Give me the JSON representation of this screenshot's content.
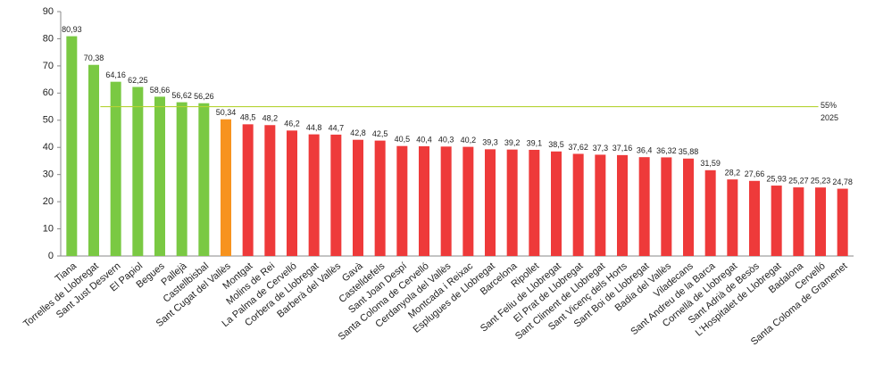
{
  "chart_data": {
    "type": "bar",
    "categories": [
      "Tiana",
      "Torrelles de Llobregat",
      "Sant Just Desvern",
      "El Papiol",
      "Begues",
      "Pallejà",
      "Castellbisbal",
      "Sant Cugat del Vallès",
      "Montgat",
      "Molins de Rei",
      "La Palma de Cervelló",
      "Corbera de Llobregat",
      "Barberà del Vallès",
      "Gavà",
      "Castelldefels",
      "Sant Joan Despí",
      "Santa Coloma de Cervelló",
      "Cerdanyola del Vallès",
      "Montcada i Reixac",
      "Esplugues de Llobregat",
      "Barcelona",
      "Ripollet",
      "Sant Feliu de Llobregat",
      "El Prat de Llobregat",
      "Sant Climent de Llobregat",
      "Sant Vicenç dels Horts",
      "Sant Boi de Llobregat",
      "Badia del Vallès",
      "Viladecans",
      "Sant Andreu de la Barca",
      "Cornellà de Llobregat",
      "Sant Adrià de Besòs",
      "L'Hospitalet de Llobregat",
      "Badalona",
      "Cervelló",
      "Santa Coloma de Gramenet"
    ],
    "values": [
      80.93,
      70.38,
      64.16,
      62.25,
      58.66,
      56.62,
      56.26,
      50.34,
      48.5,
      48.2,
      46.2,
      44.8,
      44.7,
      42.8,
      42.5,
      40.5,
      40.4,
      40.3,
      40.2,
      39.3,
      39.2,
      39.1,
      38.5,
      37.62,
      37.3,
      37.16,
      36.4,
      36.32,
      35.88,
      31.59,
      28.2,
      27.66,
      25.93,
      25.27,
      25.23,
      24.78
    ],
    "value_labels": [
      "80,93",
      "70,38",
      "64,16",
      "62,25",
      "58,66",
      "56,62",
      "56,26",
      "50,34",
      "48,5",
      "48,2",
      "46,2",
      "44,8",
      "44,7",
      "42,8",
      "42,5",
      "40,5",
      "40,4",
      "40,3",
      "40,2",
      "39,3",
      "39,2",
      "39,1",
      "38,5",
      "37,62",
      "37,3",
      "37,16",
      "36,4",
      "36,32",
      "35,88",
      "31,59",
      "28,2",
      "27,66",
      "25,93",
      "25,27",
      "25,23",
      "24,78"
    ],
    "colors": [
      "#7ac943",
      "#7ac943",
      "#7ac943",
      "#7ac943",
      "#7ac943",
      "#7ac943",
      "#7ac943",
      "#f7931e",
      "#ee3a3a",
      "#ee3a3a",
      "#ee3a3a",
      "#ee3a3a",
      "#ee3a3a",
      "#ee3a3a",
      "#ee3a3a",
      "#ee3a3a",
      "#ee3a3a",
      "#ee3a3a",
      "#ee3a3a",
      "#ee3a3a",
      "#ee3a3a",
      "#ee3a3a",
      "#ee3a3a",
      "#ee3a3a",
      "#ee3a3a",
      "#ee3a3a",
      "#ee3a3a",
      "#ee3a3a",
      "#ee3a3a",
      "#ee3a3a",
      "#ee3a3a",
      "#ee3a3a",
      "#ee3a3a",
      "#ee3a3a",
      "#ee3a3a",
      "#ee3a3a"
    ],
    "reference_line": {
      "value": 55,
      "label": [
        "55%",
        "2025"
      ],
      "color": "#b5d334"
    },
    "ylim": [
      0,
      90
    ],
    "yticks": [
      0,
      10,
      20,
      30,
      40,
      50,
      60,
      70,
      80,
      90
    ],
    "grid": false
  }
}
